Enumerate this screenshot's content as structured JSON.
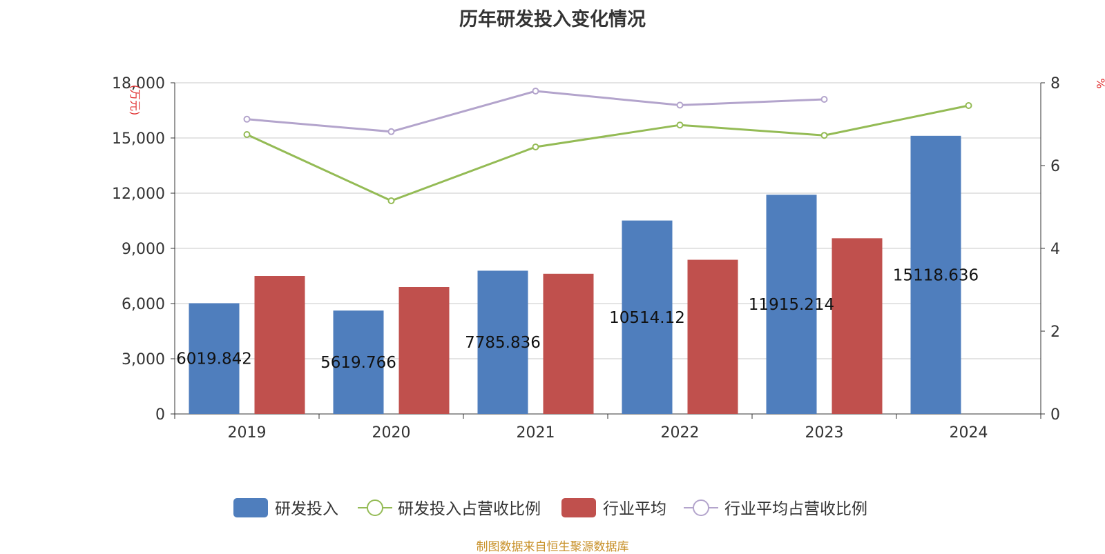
{
  "chart_data": {
    "type": "bar",
    "title": "历年研发投入变化情况",
    "categories": [
      "2019",
      "2020",
      "2021",
      "2022",
      "2023",
      "2024"
    ],
    "y_left": {
      "label": "(万元)",
      "ticks": [
        "0",
        "3,000",
        "6,000",
        "9,000",
        "12,000",
        "15,000",
        "18,000"
      ],
      "range": [
        0,
        18000
      ]
    },
    "y_right": {
      "label": "%",
      "ticks": [
        "0",
        "2",
        "4",
        "6",
        "8"
      ],
      "range": [
        0,
        8
      ]
    },
    "grid": true,
    "legend_position": "bottom",
    "series": [
      {
        "name": "研发投入",
        "type": "bar",
        "axis": "left",
        "color": "#4f7ebd",
        "values": [
          6019.842,
          5619.766,
          7785.836,
          10514.12,
          11915.214,
          15118.636
        ],
        "labels": [
          "6019.842",
          "5619.766",
          "7785.836",
          "10514.12",
          "11915.214",
          "15118.636"
        ]
      },
      {
        "name": "研发投入占营收比例",
        "type": "line",
        "axis": "right",
        "color": "#94bb55",
        "values": [
          6.75,
          5.15,
          6.45,
          6.98,
          6.73,
          7.45
        ]
      },
      {
        "name": "行业平均",
        "type": "bar",
        "axis": "left",
        "color": "#c0504d",
        "values": [
          7500,
          6900,
          7620,
          8380,
          9550,
          null
        ]
      },
      {
        "name": "行业平均占营收比例",
        "type": "line",
        "axis": "right",
        "color": "#b3a4cc",
        "values": [
          7.12,
          6.82,
          7.8,
          7.46,
          7.6,
          null
        ]
      }
    ]
  },
  "footer": {
    "source": "制图数据来自恒生聚源数据库"
  }
}
